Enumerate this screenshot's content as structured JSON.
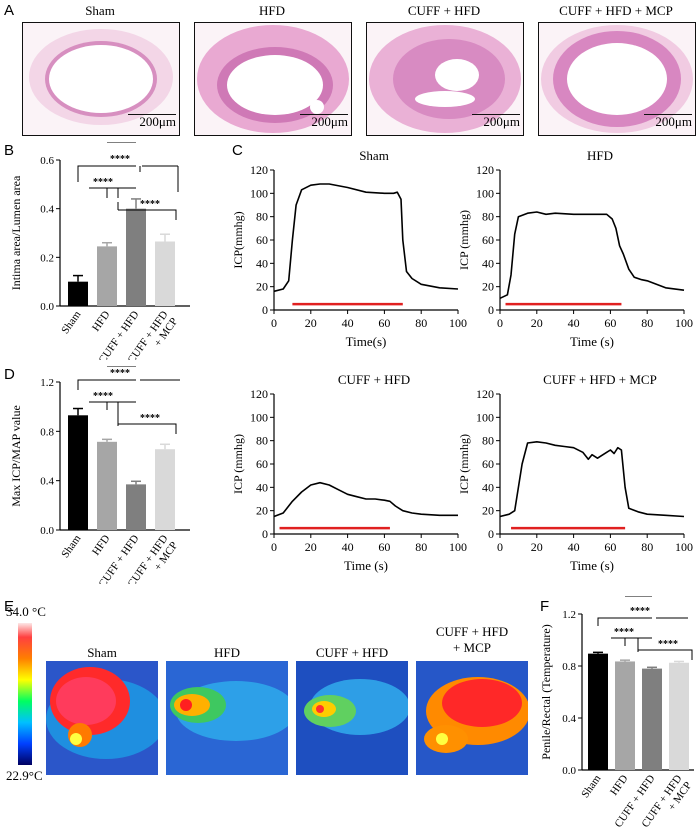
{
  "panel_labels": {
    "a": "A",
    "b": "B",
    "c": "C",
    "d": "D",
    "e": "E",
    "f": "F"
  },
  "histology": {
    "groups": [
      "Sham",
      "HFD",
      "CUFF + HFD",
      "CUFF + HFD + MCP"
    ],
    "scale_bar": "200μm"
  },
  "thermal": {
    "groups": [
      "Sham",
      "HFD",
      "CUFF + HFD",
      "CUFF + HFD\n+ MCP"
    ],
    "scale_max": "34.0 °C",
    "scale_min": "22.9°C"
  },
  "chart_data": [
    {
      "id": "B",
      "type": "bar",
      "title": "",
      "categories": [
        "Sham",
        "HFD",
        "CUFF + HFD",
        "CUFF + HFD\n+ MCP"
      ],
      "values": [
        0.1,
        0.245,
        0.4,
        0.265
      ],
      "errors": [
        0.025,
        0.015,
        0.04,
        0.03
      ],
      "colors": [
        "#000000",
        "#a6a6a6",
        "#7f7f7f",
        "#d9d9d9"
      ],
      "ylabel": "Intima area/Lumen area",
      "ylim": [
        0,
        0.6
      ],
      "yticks": [
        "0.0",
        "0.2",
        "0.4",
        "0.6"
      ],
      "significance": [
        "****",
        "****",
        "****"
      ]
    },
    {
      "id": "C1",
      "type": "line",
      "title": "Sham",
      "xlabel": "Time(s)",
      "ylabel": "ICP(mmhg)",
      "xlim": [
        0,
        100
      ],
      "ylim": [
        0,
        120
      ],
      "xticks": [
        "0",
        "20",
        "40",
        "60",
        "80",
        "100"
      ],
      "yticks": [
        "0",
        "20",
        "40",
        "60",
        "80",
        "100",
        "120"
      ],
      "x": [
        0,
        5,
        8,
        10,
        12,
        15,
        20,
        25,
        30,
        40,
        50,
        60,
        65,
        67,
        69,
        70,
        72,
        75,
        80,
        90,
        100
      ],
      "y": [
        16,
        18,
        25,
        60,
        90,
        103,
        107,
        108,
        108,
        105,
        101,
        100,
        100,
        101,
        95,
        60,
        33,
        27,
        22,
        19,
        18
      ],
      "stim_bar": [
        10,
        70
      ]
    },
    {
      "id": "C2",
      "type": "line",
      "title": "HFD",
      "xlabel": "Time (s)",
      "ylabel": "ICP (mmhg)",
      "xlim": [
        0,
        100
      ],
      "ylim": [
        0,
        120
      ],
      "xticks": [
        "0",
        "20",
        "40",
        "60",
        "80",
        "100"
      ],
      "yticks": [
        "0",
        "20",
        "40",
        "60",
        "80",
        "100",
        "120"
      ],
      "x": [
        0,
        4,
        6,
        8,
        10,
        15,
        20,
        25,
        30,
        40,
        50,
        58,
        61,
        63,
        65,
        67,
        70,
        73,
        77,
        80,
        85,
        90,
        100
      ],
      "y": [
        10,
        13,
        30,
        65,
        80,
        83,
        84,
        82,
        83,
        82,
        82,
        82,
        78,
        70,
        55,
        48,
        35,
        28,
        26,
        25,
        22,
        19,
        17
      ],
      "stim_bar": [
        3,
        66
      ]
    },
    {
      "id": "C3",
      "type": "line",
      "title": "CUFF + HFD",
      "xlabel": "Time (s)",
      "ylabel": "ICP (mmhg)",
      "xlim": [
        0,
        100
      ],
      "ylim": [
        0,
        120
      ],
      "xticks": [
        "0",
        "20",
        "40",
        "60",
        "80",
        "100"
      ],
      "yticks": [
        "0",
        "20",
        "40",
        "60",
        "80",
        "100",
        "120"
      ],
      "x": [
        0,
        5,
        10,
        15,
        20,
        25,
        30,
        35,
        40,
        45,
        50,
        55,
        60,
        63,
        66,
        70,
        75,
        80,
        90,
        100
      ],
      "y": [
        15,
        18,
        28,
        36,
        42,
        44,
        42,
        38,
        34,
        32,
        30,
        30,
        29,
        28,
        24,
        20,
        18,
        17,
        16,
        16
      ],
      "stim_bar": [
        3,
        63
      ]
    },
    {
      "id": "C4",
      "type": "line",
      "title": "CUFF + HFD + MCP",
      "xlabel": "Time (s)",
      "ylabel": "ICP (mmhg)",
      "xlim": [
        0,
        100
      ],
      "ylim": [
        0,
        120
      ],
      "xticks": [
        "0",
        "20",
        "40",
        "60",
        "80",
        "100"
      ],
      "yticks": [
        "0",
        "20",
        "40",
        "60",
        "80",
        "100",
        "120"
      ],
      "x": [
        0,
        5,
        8,
        12,
        15,
        20,
        25,
        30,
        35,
        40,
        45,
        48,
        50,
        53,
        55,
        58,
        60,
        62,
        64,
        66,
        68,
        70,
        75,
        80,
        90,
        100
      ],
      "y": [
        15,
        17,
        20,
        60,
        78,
        79,
        78,
        76,
        75,
        74,
        70,
        64,
        68,
        65,
        67,
        70,
        72,
        69,
        74,
        72,
        40,
        22,
        19,
        17,
        16,
        15
      ],
      "stim_bar": [
        6,
        68
      ]
    },
    {
      "id": "D",
      "type": "bar",
      "title": "",
      "categories": [
        "Sham",
        "HFD",
        "CUFF + HFD",
        "CUFF + HFD\n+ MCP"
      ],
      "values": [
        0.93,
        0.715,
        0.37,
        0.655
      ],
      "errors": [
        0.055,
        0.02,
        0.025,
        0.04
      ],
      "colors": [
        "#000000",
        "#a6a6a6",
        "#7f7f7f",
        "#d9d9d9"
      ],
      "ylabel": "Max ICP/MAP value",
      "ylim": [
        0,
        1.2
      ],
      "yticks": [
        "0.0",
        "0.4",
        "0.8",
        "1.2"
      ],
      "significance": [
        "****",
        "****",
        "****"
      ]
    },
    {
      "id": "F",
      "type": "bar",
      "title": "",
      "categories": [
        "Sham",
        "HFD",
        "CUFF + HFD",
        "CUFF + HFD\n+ MCP"
      ],
      "values": [
        0.895,
        0.835,
        0.78,
        0.825
      ],
      "errors": [
        0.01,
        0.01,
        0.01,
        0.01
      ],
      "colors": [
        "#000000",
        "#a6a6a6",
        "#7f7f7f",
        "#d9d9d9"
      ],
      "ylabel": "Penile/Rectal (Temperature)",
      "ylim": [
        0,
        1.2
      ],
      "yticks": [
        "0.0",
        "0.4",
        "0.8",
        "1.2"
      ],
      "significance": [
        "****",
        "****",
        "****"
      ]
    }
  ]
}
